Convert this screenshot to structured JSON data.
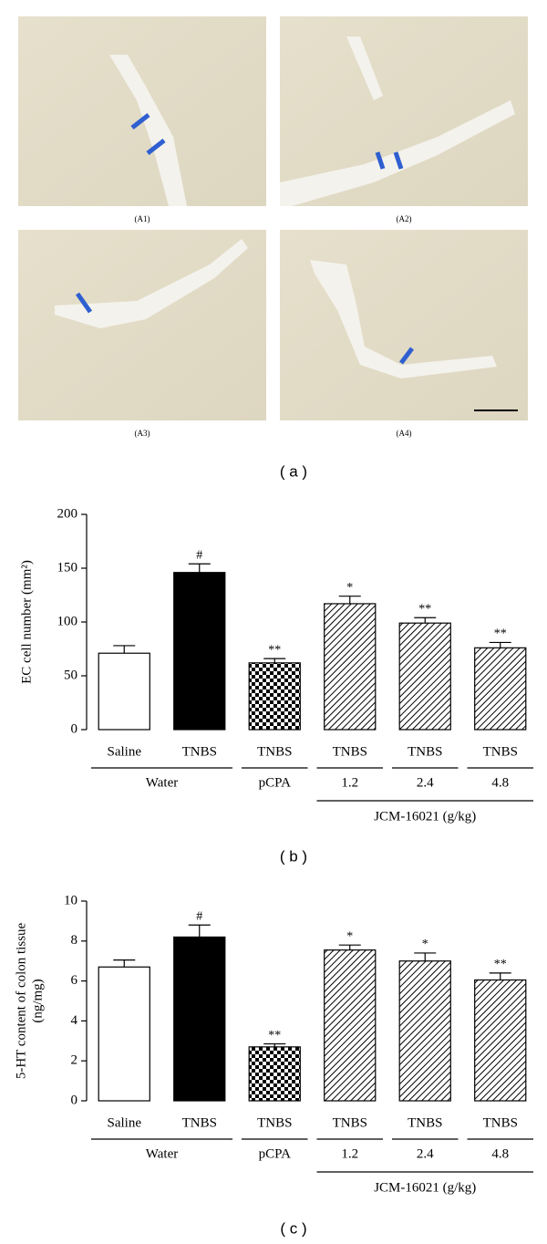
{
  "figure": {
    "image_labels": [
      "(A1)",
      "(A2)",
      "(A3)",
      "(A4)"
    ],
    "panel_labels": [
      "( a )",
      "( b )",
      "( c )"
    ]
  },
  "chart_data": [
    {
      "type": "bar",
      "ylabel_lines": [
        "EC cell number (mm²)"
      ],
      "categories": [
        "Saline",
        "TNBS",
        "TNBS",
        "TNBS",
        "TNBS",
        "TNBS"
      ],
      "values": [
        71,
        146,
        62,
        117,
        99,
        76
      ],
      "errors": [
        7,
        8,
        4,
        7,
        5,
        5
      ],
      "annotations": [
        null,
        "#",
        "**",
        "*",
        "**",
        "**"
      ],
      "fills": [
        "white",
        "black",
        "checker",
        "hatch",
        "hatch",
        "hatch"
      ],
      "groups": [
        {
          "label": "Water",
          "span": 2
        },
        {
          "label": "pCPA",
          "span": 1
        },
        {
          "label": "1.2",
          "span": 1
        },
        {
          "label": "2.4",
          "span": 1
        },
        {
          "label": "4.8",
          "span": 1
        }
      ],
      "supergroup": {
        "label": "JCM-16021 (g/kg)",
        "span": 3
      },
      "ylim": [
        0,
        200
      ],
      "yticks": [
        0,
        50,
        100,
        150,
        200
      ]
    },
    {
      "type": "bar",
      "ylabel_lines": [
        "5-HT content of colon tissue",
        "(ng/mg)"
      ],
      "categories": [
        "Saline",
        "TNBS",
        "TNBS",
        "TNBS",
        "TNBS",
        "TNBS"
      ],
      "values": [
        6.7,
        8.2,
        2.7,
        7.55,
        7.0,
        6.05
      ],
      "errors": [
        0.35,
        0.6,
        0.15,
        0.25,
        0.4,
        0.35
      ],
      "annotations": [
        null,
        "#",
        "**",
        "*",
        "*",
        "**"
      ],
      "fills": [
        "white",
        "black",
        "checker",
        "hatch",
        "hatch",
        "hatch"
      ],
      "groups": [
        {
          "label": "Water",
          "span": 2
        },
        {
          "label": "pCPA",
          "span": 1
        },
        {
          "label": "1.2",
          "span": 1
        },
        {
          "label": "2.4",
          "span": 1
        },
        {
          "label": "4.8",
          "span": 1
        }
      ],
      "supergroup": {
        "label": "JCM-16021 (g/kg)",
        "span": 3
      },
      "ylim": [
        0,
        10
      ],
      "yticks": [
        0,
        2,
        4,
        6,
        8,
        10
      ]
    }
  ]
}
